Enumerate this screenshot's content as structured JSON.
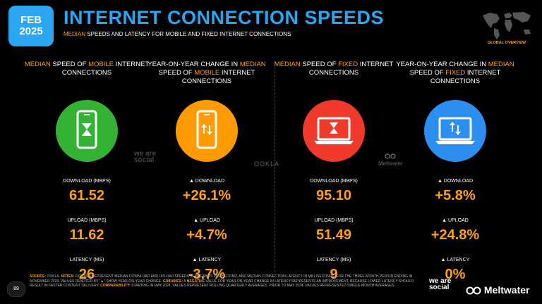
{
  "badge": {
    "month": "FEB",
    "year": "2025"
  },
  "title": "INTERNET CONNECTION SPEEDS",
  "subtitle": {
    "highlight": "MEDIAN",
    "rest": " SPEEDS AND LATENCY FOR MOBILE AND FIXED INTERNET CONNECTIONS"
  },
  "map_caption": "GLOBAL OVERVIEW",
  "columns": [
    {
      "head": [
        {
          "t": "MEDIAN",
          "hl": true
        },
        {
          "t": " SPEED OF ",
          "hl": false
        },
        {
          "t": "MOBILE",
          "hl": true
        },
        {
          "t": " INTERNET CONNECTIONS",
          "hl": false
        }
      ],
      "icon": "mobile-hourglass-icon",
      "color": "#34b233",
      "metrics": [
        {
          "label": "DOWNLOAD (MBPS)",
          "value": "61.52"
        },
        {
          "label": "UPLOAD (MBPS)",
          "value": "11.62"
        },
        {
          "label": "LATENCY (MS)",
          "value": "26"
        }
      ]
    },
    {
      "head": [
        {
          "t": "YEAR-ON-YEAR CHANGE IN ",
          "hl": false
        },
        {
          "t": "MEDIAN",
          "hl": true
        },
        {
          "t": " SPEED OF ",
          "hl": false
        },
        {
          "t": "MOBILE",
          "hl": true
        },
        {
          "t": " INTERNET CONNECTIONS",
          "hl": false
        }
      ],
      "icon": "mobile-arrows-icon",
      "color": "#ff9b00",
      "metrics": [
        {
          "label": "▲ DOWNLOAD",
          "value": "+26.1%"
        },
        {
          "label": "▲ UPLOAD",
          "value": "+4.7%"
        },
        {
          "label": "▲ LATENCY",
          "value": "-3.7%"
        }
      ]
    },
    {
      "head": [
        {
          "t": "MEDIAN",
          "hl": true
        },
        {
          "t": " SPEED OF ",
          "hl": false
        },
        {
          "t": "FIXED",
          "hl": true
        },
        {
          "t": " INTERNET CONNECTIONS",
          "hl": false
        }
      ],
      "icon": "laptop-hourglass-icon",
      "color": "#f13a2b",
      "metrics": [
        {
          "label": "DOWNLOAD (MBPS)",
          "value": "95.10"
        },
        {
          "label": "UPLOAD (MBPS)",
          "value": "51.49"
        },
        {
          "label": "LATENCY (MS)",
          "value": "9"
        }
      ]
    },
    {
      "head": [
        {
          "t": "YEAR-ON-YEAR CHANGE IN ",
          "hl": false
        },
        {
          "t": "MEDIAN",
          "hl": true
        },
        {
          "t": " SPEED OF ",
          "hl": false
        },
        {
          "t": "FIXED",
          "hl": true
        },
        {
          "t": " INTERNET CONNECTIONS",
          "hl": false
        }
      ],
      "icon": "laptop-arrows-icon",
      "color": "#2a8ff0",
      "metrics": [
        {
          "label": "▲ DOWNLOAD",
          "value": "+5.8%"
        },
        {
          "label": "▲ UPLOAD",
          "value": "+24.8%"
        },
        {
          "label": "▲ LATENCY",
          "value": "0%"
        }
      ]
    }
  ],
  "logos": {
    "we_are_social": "we are social",
    "ookla": "OOKLA",
    "meltwater": "Meltwater"
  },
  "page_number": "89",
  "footnote": [
    {
      "t": "SOURCE:",
      "k": true
    },
    {
      "t": " OOKLA. ",
      "k": false
    },
    {
      "t": "NOTES:",
      "k": true
    },
    {
      "t": " FIGURES REPRESENT MEDIAN DOWNLOAD AND UPLOAD SPEEDS IN MEGABITS PER SECOND, AND MEDIAN CONNECTION LATENCY IN MILLISECONDS, FOR THE THREE-MONTH PERIOD ENDING IN NOVEMBER 2024. VALUES DENOTED BY \"▲\" SHOW YEAR-ON-YEAR CHANGE. ",
      "k": false
    },
    {
      "t": "GUIDANCE:",
      "k": true
    },
    {
      "t": " A ",
      "k": false
    },
    {
      "t": "NEGATIVE",
      "k": true
    },
    {
      "t": " VALUE FOR YEAR-ON-YEAR CHANGE IN LATENCY REPRESENTS AN IMPROVEMENT, BECAUSE LOWER LATENCY SHOULD RESULT IN FASTER CONTENT DELIVERY. ",
      "k": false
    },
    {
      "t": "COMPARABILITY:",
      "k": true
    },
    {
      "t": " STARTING IN MAY 2024, VALUES REPRESENT ROLLING QUARTERLY AVERAGES. PRIOR TO MAY 2024, VALUES REPRESENTED SINGLE-MONTH AVERAGES.",
      "k": false
    }
  ]
}
